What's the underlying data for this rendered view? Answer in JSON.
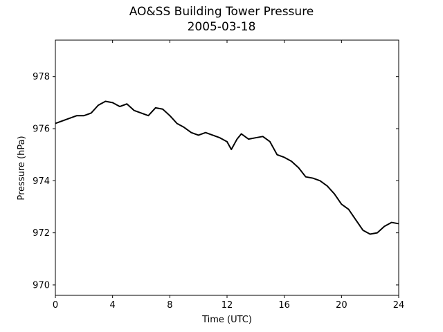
{
  "chart_data": {
    "type": "line",
    "title": "AO&SS Building Tower Pressure",
    "subtitle": "2005-03-18",
    "xlabel": "Time (UTC)",
    "ylabel": "Pressure (hPa)",
    "xlim": [
      0,
      24
    ],
    "ylim": [
      969.6,
      979.4
    ],
    "xticks": [
      0,
      4,
      8,
      12,
      16,
      20,
      24
    ],
    "yticks": [
      970,
      972,
      974,
      976,
      978
    ],
    "grid": false,
    "line_color": "#000000",
    "series": [
      {
        "x": [
          0,
          0.5,
          1,
          1.5,
          2,
          2.5,
          3,
          3.5,
          4,
          4.5,
          5,
          5.5,
          6,
          6.5,
          7,
          7.5,
          8,
          8.5,
          9,
          9.5,
          10,
          10.5,
          11,
          11.5,
          12,
          12.3,
          12.7,
          13,
          13.5,
          14,
          14.5,
          15,
          15.5,
          16,
          16.5,
          17,
          17.5,
          18,
          18.5,
          19,
          19.5,
          20,
          20.5,
          21,
          21.5,
          22,
          22.5,
          23,
          23.5,
          24
        ],
        "y": [
          976.2,
          976.3,
          976.4,
          976.5,
          976.5,
          976.6,
          976.9,
          977.05,
          977.0,
          976.85,
          976.95,
          976.7,
          976.6,
          976.5,
          976.8,
          976.75,
          976.5,
          976.2,
          976.05,
          975.85,
          975.75,
          975.85,
          975.75,
          975.65,
          975.5,
          975.2,
          975.6,
          975.8,
          975.6,
          975.65,
          975.7,
          975.5,
          975.0,
          974.9,
          974.75,
          974.5,
          974.15,
          974.1,
          974.0,
          973.8,
          973.5,
          973.1,
          972.9,
          972.5,
          972.1,
          971.95,
          972.0,
          972.25,
          972.4,
          972.35
        ]
      }
    ]
  }
}
